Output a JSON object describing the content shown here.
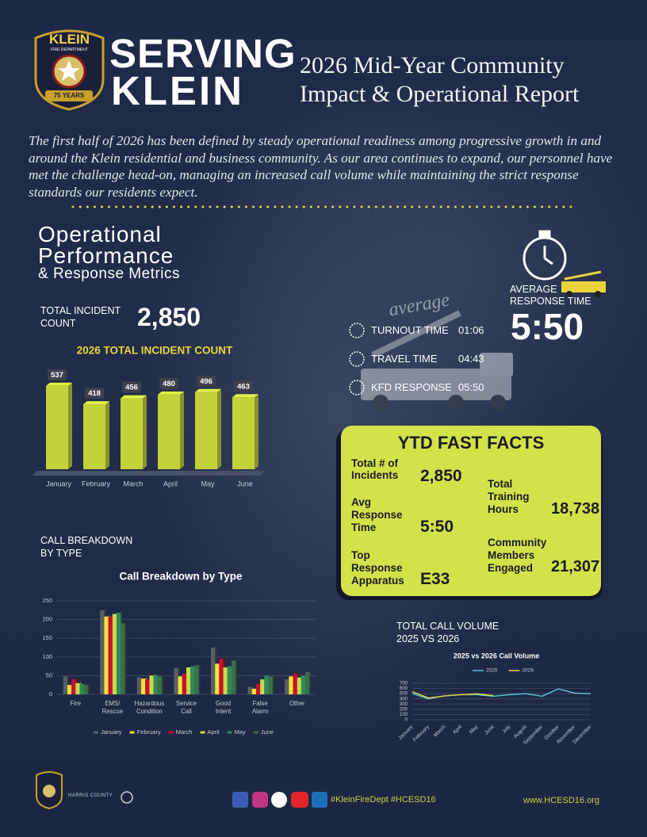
{
  "logo": {
    "name": "KLEIN",
    "subtitle": "FIRE DEPARTMENT",
    "badge": "75 YEARS"
  },
  "header": {
    "kicker": "SERVING",
    "brand": "KLEIN",
    "title_line1": "2026 Mid-Year Community",
    "title_line2": "Impact & Operational Report"
  },
  "intro": "The first half of 2026 has been defined by steady operational readiness among progressive growth in and around the Klein residential and business community. As our area continues to expand, our personnel have met the challenge head-on, managing an increased call volume while maintaining the strict response standards our residents expect.",
  "performance": {
    "title_line1": "Operational",
    "title_line2": "Performance",
    "subtitle": "& Response Metrics",
    "total_label": "TOTAL INCIDENT COUNT",
    "total_value": "2,850"
  },
  "response": {
    "script_label": "average",
    "rows": [
      {
        "label": "TURNOUT TIME",
        "value": "01:06"
      },
      {
        "label": "TRAVEL TIME",
        "value": "04:43"
      },
      {
        "label": "KFD RESPONSE",
        "value": "05:50"
      }
    ],
    "avg_label": "AVERAGE RESPONSE TIME",
    "avg_value": "5:50"
  },
  "fast_facts": {
    "title": "YTD FAST FACTS",
    "items": [
      {
        "label": "Total # of Incidents",
        "value": "2,850"
      },
      {
        "label": "Avg Response Time",
        "value": "5:50"
      },
      {
        "label": "Top Response Apparatus",
        "value": "E33"
      },
      {
        "label": "Total Training Hours",
        "value": "18,738"
      },
      {
        "label": "Community Members Engaged",
        "value": "21,307"
      }
    ]
  },
  "call_breakdown_heading": "CALL BREAKDOWN BY TYPE",
  "call_volume_heading": "TOTAL CALL VOLUME 2025 VS 2026",
  "footer": {
    "partner": "HARRIS COUNTY",
    "hashtags": "#KleinFireDept #HCESD16",
    "website": "www.HCESD16.org"
  },
  "chart_data": [
    {
      "type": "bar",
      "title": "2026 TOTAL INCIDENT COUNT",
      "categories": [
        "January",
        "February",
        "March",
        "April",
        "May",
        "June"
      ],
      "values": [
        537,
        418,
        456,
        480,
        496,
        463
      ],
      "color": "#c4d23a"
    },
    {
      "type": "bar",
      "title": "Call Breakdown by Type",
      "categories": [
        "Fire",
        "EMS/\nRescue",
        "Hazardous\nCondition",
        "Service\nCall",
        "Good\nIntent",
        "False\nAlarm",
        "Other"
      ],
      "series": [
        {
          "name": "January",
          "color": "#5a5f66",
          "values": [
            48,
            225,
            45,
            70,
            125,
            20,
            40
          ]
        },
        {
          "name": "February",
          "color": "#f2e33a",
          "values": [
            25,
            208,
            42,
            48,
            82,
            15,
            48
          ]
        },
        {
          "name": "March",
          "color": "#c8102e",
          "values": [
            40,
            208,
            40,
            55,
            95,
            28,
            55
          ]
        },
        {
          "name": "April",
          "color": "#c9d84c",
          "values": [
            30,
            215,
            50,
            72,
            72,
            40,
            45
          ]
        },
        {
          "name": "May",
          "color": "#2e8b57",
          "values": [
            28,
            218,
            52,
            75,
            75,
            50,
            50
          ]
        },
        {
          "name": "June",
          "color": "#3c6e4c",
          "values": [
            25,
            190,
            48,
            78,
            90,
            48,
            60
          ]
        }
      ],
      "ylim": [
        0,
        250
      ],
      "yticks": [
        0,
        50,
        100,
        150,
        200,
        250
      ],
      "grid": true,
      "legend": "bottom"
    },
    {
      "type": "line",
      "title": "2025 vs 2026 Call Volume",
      "categories": [
        "January",
        "February",
        "March",
        "April",
        "May",
        "June",
        "July",
        "August",
        "September",
        "October",
        "November",
        "December"
      ],
      "series": [
        {
          "name": "2025",
          "color": "#5bc8d8",
          "values": [
            500,
            400,
            460,
            480,
            480,
            450,
            480,
            500,
            450,
            590,
            510,
            500
          ]
        },
        {
          "name": "2026",
          "color": "#e8d43a",
          "values": [
            537,
            418,
            456,
            480,
            496,
            463,
            null,
            null,
            null,
            null,
            null,
            null
          ]
        }
      ],
      "ylim": [
        0,
        700
      ],
      "yticks": [
        0,
        100,
        200,
        300,
        400,
        500,
        600,
        700
      ],
      "grid": true,
      "legend": "top"
    }
  ]
}
